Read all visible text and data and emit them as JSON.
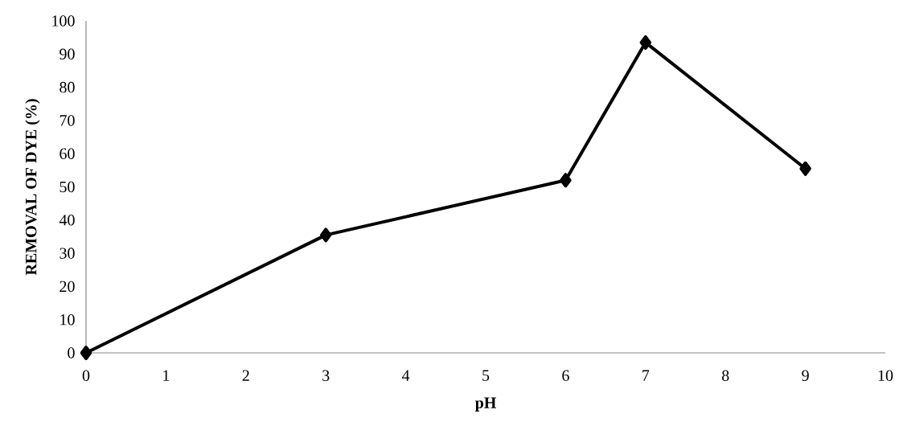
{
  "chart_data": {
    "type": "line",
    "xlabel": "pH",
    "ylabel": "REMOVAL OF DYE (%)",
    "x": [
      0,
      3,
      6,
      7,
      9
    ],
    "series": [
      {
        "color": "#000000",
        "values": [
          0,
          35.5,
          52,
          93.5,
          55.5
        ]
      }
    ],
    "xlim": [
      0,
      10
    ],
    "ylim": [
      0,
      100
    ],
    "xticks": [
      0,
      1,
      2,
      3,
      4,
      5,
      6,
      7,
      8,
      9,
      10
    ],
    "yticks": [
      0,
      10,
      20,
      30,
      40,
      50,
      60,
      70,
      80,
      90,
      100
    ],
    "grid": false,
    "marker": "diamond",
    "line_style": "solid"
  }
}
